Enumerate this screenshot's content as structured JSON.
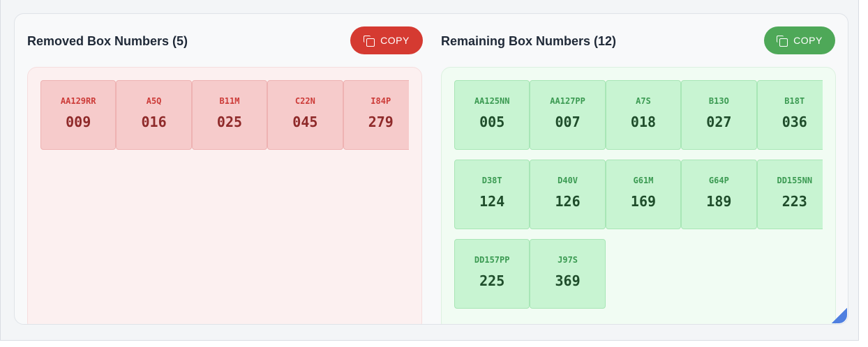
{
  "removed": {
    "title": "Removed Box Numbers (5)",
    "copy_label": "COPY",
    "items": [
      {
        "code": "AA129RR",
        "num": "009"
      },
      {
        "code": "A5Q",
        "num": "016"
      },
      {
        "code": "B11M",
        "num": "025"
      },
      {
        "code": "C22N",
        "num": "045"
      },
      {
        "code": "I84P",
        "num": "279"
      }
    ]
  },
  "remaining": {
    "title": "Remaining Box Numbers (12)",
    "copy_label": "COPY",
    "items": [
      {
        "code": "AA125NN",
        "num": "005"
      },
      {
        "code": "AA127PP",
        "num": "007"
      },
      {
        "code": "A7S",
        "num": "018"
      },
      {
        "code": "B13O",
        "num": "027"
      },
      {
        "code": "B18T",
        "num": "036"
      },
      {
        "code": "D38T",
        "num": "124"
      },
      {
        "code": "D40V",
        "num": "126"
      },
      {
        "code": "G61M",
        "num": "169"
      },
      {
        "code": "G64P",
        "num": "189"
      },
      {
        "code": "DD155NN",
        "num": "223"
      },
      {
        "code": "DD157PP",
        "num": "225"
      },
      {
        "code": "J97S",
        "num": "369"
      }
    ]
  },
  "colors": {
    "removed_accent": "#d53a31",
    "remaining_accent": "#4ea858",
    "resize_handle": "#4f7fe0"
  },
  "icons": {
    "copy": "copy-icon",
    "resize": "resize-handle-icon"
  }
}
